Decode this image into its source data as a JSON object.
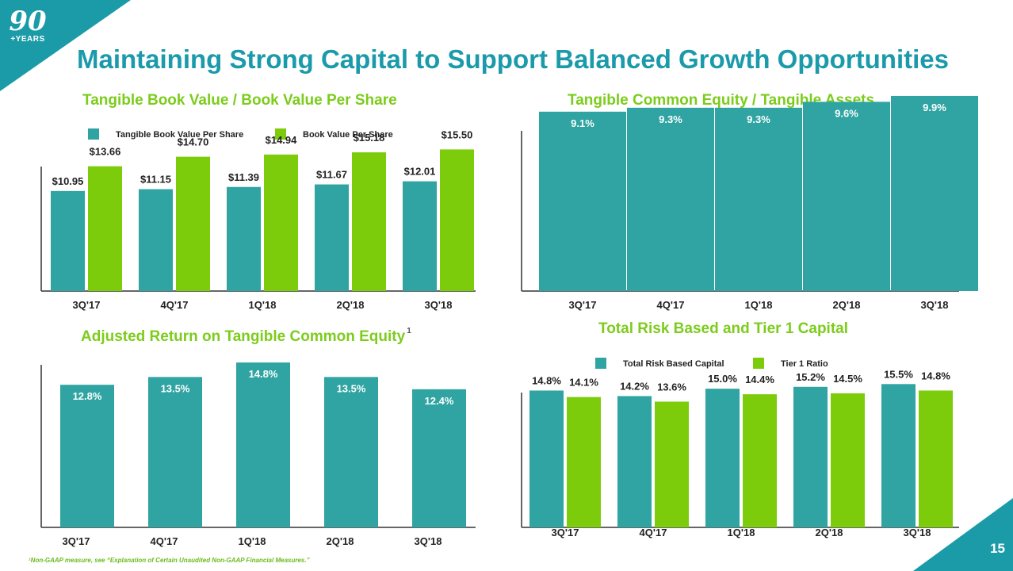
{
  "header": {
    "title": "Maintaining Strong Capital to Support Balanced Growth Opportunities",
    "logo_number": "90",
    "logo_text": "+YEARS",
    "page_number": "15"
  },
  "footnote": "¹Non-GAAP measure, see “Explanation of Certain Unaudited Non-GAAP Financial Measures.”",
  "colors": {
    "teal": "#2fa4a2",
    "green": "#7ccc0c",
    "title_teal": "#1a9aaa",
    "title_green": "#7ccc1c"
  },
  "chart_data": [
    {
      "type": "bar",
      "title": "Tangible Book Value / Book Value Per Share",
      "categories": [
        "3Q'17",
        "4Q'17",
        "1Q'18",
        "2Q'18",
        "3Q'18"
      ],
      "series": [
        {
          "name": "Tangible Book Value Per Share",
          "values": [
            10.95,
            11.15,
            11.39,
            11.67,
            12.01
          ],
          "labels": [
            "$10.95",
            "$11.15",
            "$11.39",
            "$11.67",
            "$12.01"
          ],
          "color": "#2fa4a2"
        },
        {
          "name": "Book Value Per Share",
          "values": [
            13.66,
            14.7,
            14.94,
            15.18,
            15.5
          ],
          "labels": [
            "$13.66",
            "$14.70",
            "$14.94",
            "$15.18",
            "$15.50"
          ],
          "color": "#7ccc0c"
        }
      ],
      "ylim": [
        0,
        18.4
      ],
      "legend": "top",
      "labels_inside": false
    },
    {
      "type": "bar",
      "title": "Tangible Common Equity / Tangible Assets",
      "categories": [
        "3Q'17",
        "4Q'17",
        "1Q'18",
        "2Q'18",
        "3Q'18"
      ],
      "series": [
        {
          "values": [
            9.1,
            9.3,
            9.3,
            9.6,
            9.9
          ],
          "labels": [
            "9.1%",
            "9.3%",
            "9.3%",
            "9.6%",
            "9.9%"
          ],
          "color": "#2fa4a2"
        }
      ],
      "ylim": [
        0,
        10.34
      ],
      "labels_inside": true
    },
    {
      "type": "bar",
      "title": "Adjusted Return on Tangible Common Equity",
      "title_superscript": "1",
      "categories": [
        "3Q'17",
        "4Q'17",
        "1Q'18",
        "2Q'18",
        "3Q'18"
      ],
      "series": [
        {
          "values": [
            12.8,
            13.5,
            14.8,
            13.5,
            12.4
          ],
          "labels": [
            "12.8%",
            "13.5%",
            "14.8%",
            "13.5%",
            "12.4%"
          ],
          "color": "#2fa4a2"
        }
      ],
      "ylim": [
        0,
        14.95
      ],
      "labels_inside": true
    },
    {
      "type": "bar",
      "title": "Total Risk Based and Tier 1 Capital",
      "categories": [
        "3Q'17",
        "4Q'17",
        "1Q'18",
        "2Q'18",
        "3Q'18"
      ],
      "series": [
        {
          "name": "Total Risk Based Capital",
          "values": [
            14.8,
            14.2,
            15.0,
            15.2,
            15.5
          ],
          "labels": [
            "14.8%",
            "14.2%",
            "15.0%",
            "15.2%",
            "15.5%"
          ],
          "color": "#2fa4a2"
        },
        {
          "name": "Tier 1 Ratio",
          "values": [
            14.1,
            13.6,
            14.4,
            14.5,
            14.8
          ],
          "labels": [
            "14.1%",
            "13.6%",
            "14.4%",
            "14.5%",
            "14.8%"
          ],
          "color": "#7ccc0c"
        }
      ],
      "ylim": [
        0,
        19.3
      ],
      "legend": "top",
      "labels_inside": false
    }
  ]
}
